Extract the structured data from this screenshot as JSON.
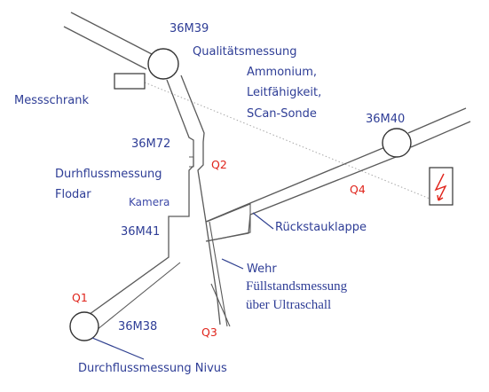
{
  "nodes": {
    "m39": "36M39",
    "m72": "36M72",
    "m41": "36M41",
    "m38": "36M38",
    "m40": "36M40"
  },
  "points": {
    "q1": "Q1",
    "q2": "Q2",
    "q3": "Q3",
    "q4": "Q4"
  },
  "labels": {
    "messschrank": "Messschrank",
    "qualitaet": "Qualitätsmessung",
    "params": [
      "Ammonium,",
      "Leitfähigkeit,",
      "SCan-Sonde"
    ],
    "durchfluss_flodar": [
      "Durhflussmessung",
      "Flodar"
    ],
    "kamera": "Kamera",
    "rueckstau": "Rückstauklappe",
    "wehr": [
      "Wehr",
      "Füllstandsmessung",
      "über Ultraschall"
    ],
    "nivus": "Durchflussmessung Nivus"
  },
  "colors": {
    "label_blue": "#2e3d96",
    "marker_red": "#e0241b",
    "pipe_gray": "#5a5a5a"
  }
}
